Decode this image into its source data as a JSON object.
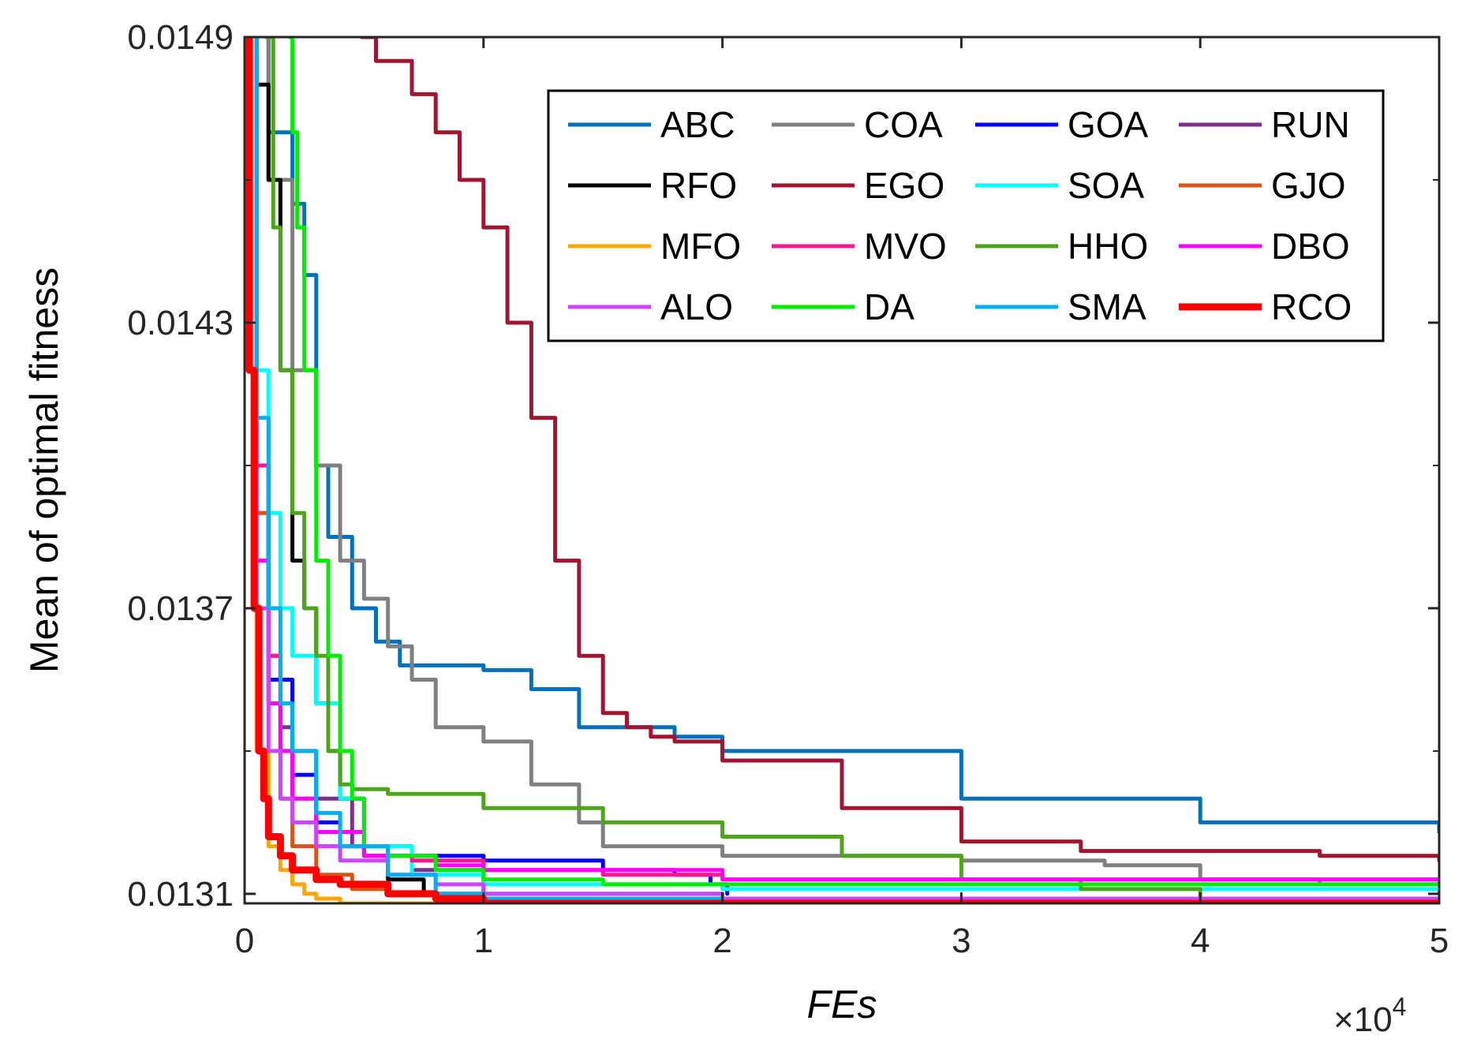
{
  "chart_data": {
    "type": "line",
    "title": "",
    "xlabel": "FEs",
    "ylabel": "Mean of optimal fitness",
    "x_exponent_label": "×10",
    "x_exponent_power": "4",
    "xlim": [
      0,
      5
    ],
    "ylim": [
      0.01308,
      0.0149
    ],
    "xticks": [
      0,
      1,
      2,
      3,
      4,
      5
    ],
    "xtick_labels": [
      "0",
      "1",
      "2",
      "3",
      "4",
      "5"
    ],
    "yticks": [
      0.0131,
      0.0137,
      0.0143,
      0.0149
    ],
    "ytick_labels": [
      "0.0131",
      "0.0137",
      "0.0143",
      "0.0149"
    ],
    "legend_position": "top-right",
    "legend_columns": 4,
    "series": [
      {
        "name": "ABC",
        "color": "#0072BD",
        "width": 5,
        "x": [
          0,
          0.1,
          0.2,
          0.25,
          0.3,
          0.35,
          0.45,
          0.55,
          0.65,
          1.0,
          1.2,
          1.4,
          1.8,
          2.0,
          3.0,
          4.0,
          5.0
        ],
        "y": [
          0.01492,
          0.0147,
          0.01455,
          0.0144,
          0.014,
          0.01385,
          0.0137,
          0.01363,
          0.01358,
          0.01357,
          0.01353,
          0.01345,
          0.01343,
          0.0134,
          0.0133,
          0.01325,
          0.01323
        ]
      },
      {
        "name": "COA",
        "color": "#808080",
        "width": 5,
        "x": [
          0,
          0.1,
          0.2,
          0.3,
          0.4,
          0.5,
          0.6,
          0.7,
          0.8,
          1.0,
          1.2,
          1.4,
          1.5,
          2.0,
          3.0,
          3.6,
          4.0,
          4.5,
          5.0
        ],
        "y": [
          0.01492,
          0.0146,
          0.0142,
          0.014,
          0.0138,
          0.01372,
          0.01362,
          0.01355,
          0.01345,
          0.01342,
          0.01333,
          0.01325,
          0.0132,
          0.01318,
          0.01317,
          0.01316,
          0.01313,
          0.01312,
          0.01312
        ]
      },
      {
        "name": "GOA",
        "color": "#0000FF",
        "width": 5,
        "x": [
          0,
          0.05,
          0.1,
          0.2,
          0.3,
          0.4,
          0.6,
          1.0,
          1.5,
          1.8,
          1.95,
          2.02
        ],
        "y": [
          0.01492,
          0.014,
          0.01355,
          0.01335,
          0.01325,
          0.0132,
          0.01318,
          0.01317,
          0.01315,
          0.01314,
          0.01312,
          0.0131
        ]
      },
      {
        "name": "RUN",
        "color": "#7E2F8E",
        "width": 5,
        "x": [
          0,
          0.05,
          0.1,
          0.15,
          0.2,
          0.3,
          0.45,
          0.7,
          1.0,
          2.0,
          3.0,
          4.0,
          5.0
        ],
        "y": [
          0.01492,
          0.014,
          0.0136,
          0.01345,
          0.0134,
          0.0133,
          0.0132,
          0.01315,
          0.0131,
          0.01309,
          0.01309,
          0.01308,
          0.01308
        ]
      },
      {
        "name": "RFO",
        "color": "#000000",
        "width": 5,
        "x": [
          0,
          0.05,
          0.1,
          0.15,
          0.2,
          0.25,
          0.3,
          0.35,
          0.4,
          0.5,
          0.6,
          0.75,
          1.0,
          2.0,
          5.0
        ],
        "y": [
          0.01492,
          0.0148,
          0.0146,
          0.0142,
          0.0138,
          0.0137,
          0.0135,
          0.0134,
          0.0133,
          0.01318,
          0.01313,
          0.0131,
          0.01308,
          0.01308,
          0.01308
        ]
      },
      {
        "name": "EGO",
        "color": "#A2142F",
        "width": 5,
        "x": [
          0.49,
          0.55,
          0.7,
          0.8,
          0.9,
          1.0,
          1.1,
          1.2,
          1.3,
          1.4,
          1.5,
          1.6,
          1.7,
          1.8,
          2.0,
          2.5,
          3.0,
          3.5,
          4.0,
          4.5,
          5.0
        ],
        "y": [
          0.0149,
          0.01485,
          0.01478,
          0.0147,
          0.0146,
          0.0145,
          0.0143,
          0.0141,
          0.0138,
          0.0136,
          0.01348,
          0.01345,
          0.01343,
          0.01342,
          0.01338,
          0.01328,
          0.01321,
          0.01319,
          0.01319,
          0.01318,
          0.01317
        ]
      },
      {
        "name": "SOA",
        "color": "#00FFFF",
        "width": 5,
        "x": [
          0,
          0.05,
          0.1,
          0.15,
          0.2,
          0.3,
          0.4,
          0.5,
          0.7,
          1.0,
          2.0,
          5.0
        ],
        "y": [
          0.01492,
          0.0142,
          0.0139,
          0.0137,
          0.0136,
          0.0135,
          0.0133,
          0.0132,
          0.01314,
          0.01312,
          0.01311,
          0.0131
        ]
      },
      {
        "name": "GJO",
        "color": "#D95319",
        "width": 5,
        "x": [
          0,
          0.05,
          0.1,
          0.15,
          0.2,
          0.3,
          0.45,
          0.6,
          1.0,
          2.0,
          5.0
        ],
        "y": [
          0.01492,
          0.0139,
          0.0135,
          0.0133,
          0.0132,
          0.01314,
          0.01311,
          0.0131,
          0.01309,
          0.01308,
          0.01308
        ]
      },
      {
        "name": "MFO",
        "color": "#FFA500",
        "width": 5,
        "x": [
          0,
          0.05,
          0.1,
          0.15,
          0.2,
          0.25,
          0.3,
          0.4,
          0.6,
          1.0,
          5.0
        ],
        "y": [
          0.01492,
          0.0134,
          0.0132,
          0.01315,
          0.01312,
          0.0131,
          0.01309,
          0.01308,
          0.01308,
          0.01308,
          0.01308
        ]
      },
      {
        "name": "MVO",
        "color": "#FF1493",
        "width": 5,
        "x": [
          0,
          0.05,
          0.1,
          0.15,
          0.2,
          0.3,
          0.5,
          0.7,
          1.0,
          1.5,
          2.0,
          3.0,
          4.0,
          5.0
        ],
        "y": [
          0.01492,
          0.014,
          0.0136,
          0.0134,
          0.0133,
          0.0132,
          0.01318,
          0.01317,
          0.01315,
          0.01314,
          0.01313,
          0.01313,
          0.01313,
          0.01313
        ]
      },
      {
        "name": "HHO",
        "color": "#4DA619",
        "width": 5,
        "x": [
          0.09,
          0.12,
          0.15,
          0.2,
          0.25,
          0.3,
          0.35,
          0.4,
          0.45,
          0.6,
          1.0,
          1.5,
          2.0,
          2.5,
          3.0,
          3.5,
          4.0,
          4.5,
          5.0
        ],
        "y": [
          0.0149,
          0.0145,
          0.0142,
          0.0139,
          0.0137,
          0.0136,
          0.0134,
          0.01333,
          0.01332,
          0.01331,
          0.01328,
          0.01325,
          0.01322,
          0.01318,
          0.01313,
          0.01311,
          0.01309,
          0.01308,
          0.01308
        ]
      },
      {
        "name": "DBO",
        "color": "#FF00FF",
        "width": 5,
        "x": [
          0,
          0.05,
          0.1,
          0.15,
          0.2,
          0.3,
          0.5,
          0.8,
          1.0,
          2.0,
          3.0,
          4.0,
          5.0
        ],
        "y": [
          0.01492,
          0.0138,
          0.0135,
          0.0134,
          0.0133,
          0.01323,
          0.01318,
          0.01316,
          0.01315,
          0.01313,
          0.01313,
          0.01313,
          0.01313
        ]
      },
      {
        "name": "ALO",
        "color": "#CC44FF",
        "width": 5,
        "x": [
          0,
          0.05,
          0.1,
          0.15,
          0.2,
          0.3,
          0.4,
          0.6,
          0.8,
          1.0,
          2.0,
          5.0
        ],
        "y": [
          0.01492,
          0.0137,
          0.0134,
          0.0133,
          0.01325,
          0.0132,
          0.01317,
          0.01314,
          0.01312,
          0.0131,
          0.01309,
          0.01308
        ]
      },
      {
        "name": "DA",
        "color": "#00EE00",
        "width": 5,
        "x": [
          0.19,
          0.2,
          0.22,
          0.25,
          0.3,
          0.35,
          0.4,
          0.45,
          0.5,
          0.6,
          0.8,
          1.0,
          1.5,
          2.0,
          3.0,
          4.0,
          5.0
        ],
        "y": [
          0.0149,
          0.0147,
          0.0145,
          0.0142,
          0.0138,
          0.0136,
          0.0134,
          0.0133,
          0.0132,
          0.01318,
          0.01315,
          0.01313,
          0.01312,
          0.01312,
          0.01312,
          0.01312,
          0.01312
        ]
      },
      {
        "name": "SMA",
        "color": "#00B0F0",
        "width": 5,
        "x": [
          0,
          0.05,
          0.1,
          0.15,
          0.2,
          0.3,
          0.4,
          0.6,
          0.8,
          1.0,
          2.0,
          5.0
        ],
        "y": [
          0.01492,
          0.0141,
          0.0137,
          0.0135,
          0.0134,
          0.01327,
          0.0132,
          0.01314,
          0.0131,
          0.01309,
          0.01308,
          0.01308
        ]
      },
      {
        "name": "RCO",
        "color": "#FF0000",
        "width": 9,
        "x": [
          0,
          0.02,
          0.04,
          0.06,
          0.08,
          0.1,
          0.15,
          0.2,
          0.3,
          0.4,
          0.6,
          0.8,
          1.0,
          2.0,
          5.0
        ],
        "y": [
          0.01492,
          0.0142,
          0.0137,
          0.0134,
          0.0133,
          0.01322,
          0.01318,
          0.01315,
          0.01313,
          0.01312,
          0.0131,
          0.01309,
          0.01308,
          0.01308,
          0.01308
        ]
      }
    ]
  }
}
